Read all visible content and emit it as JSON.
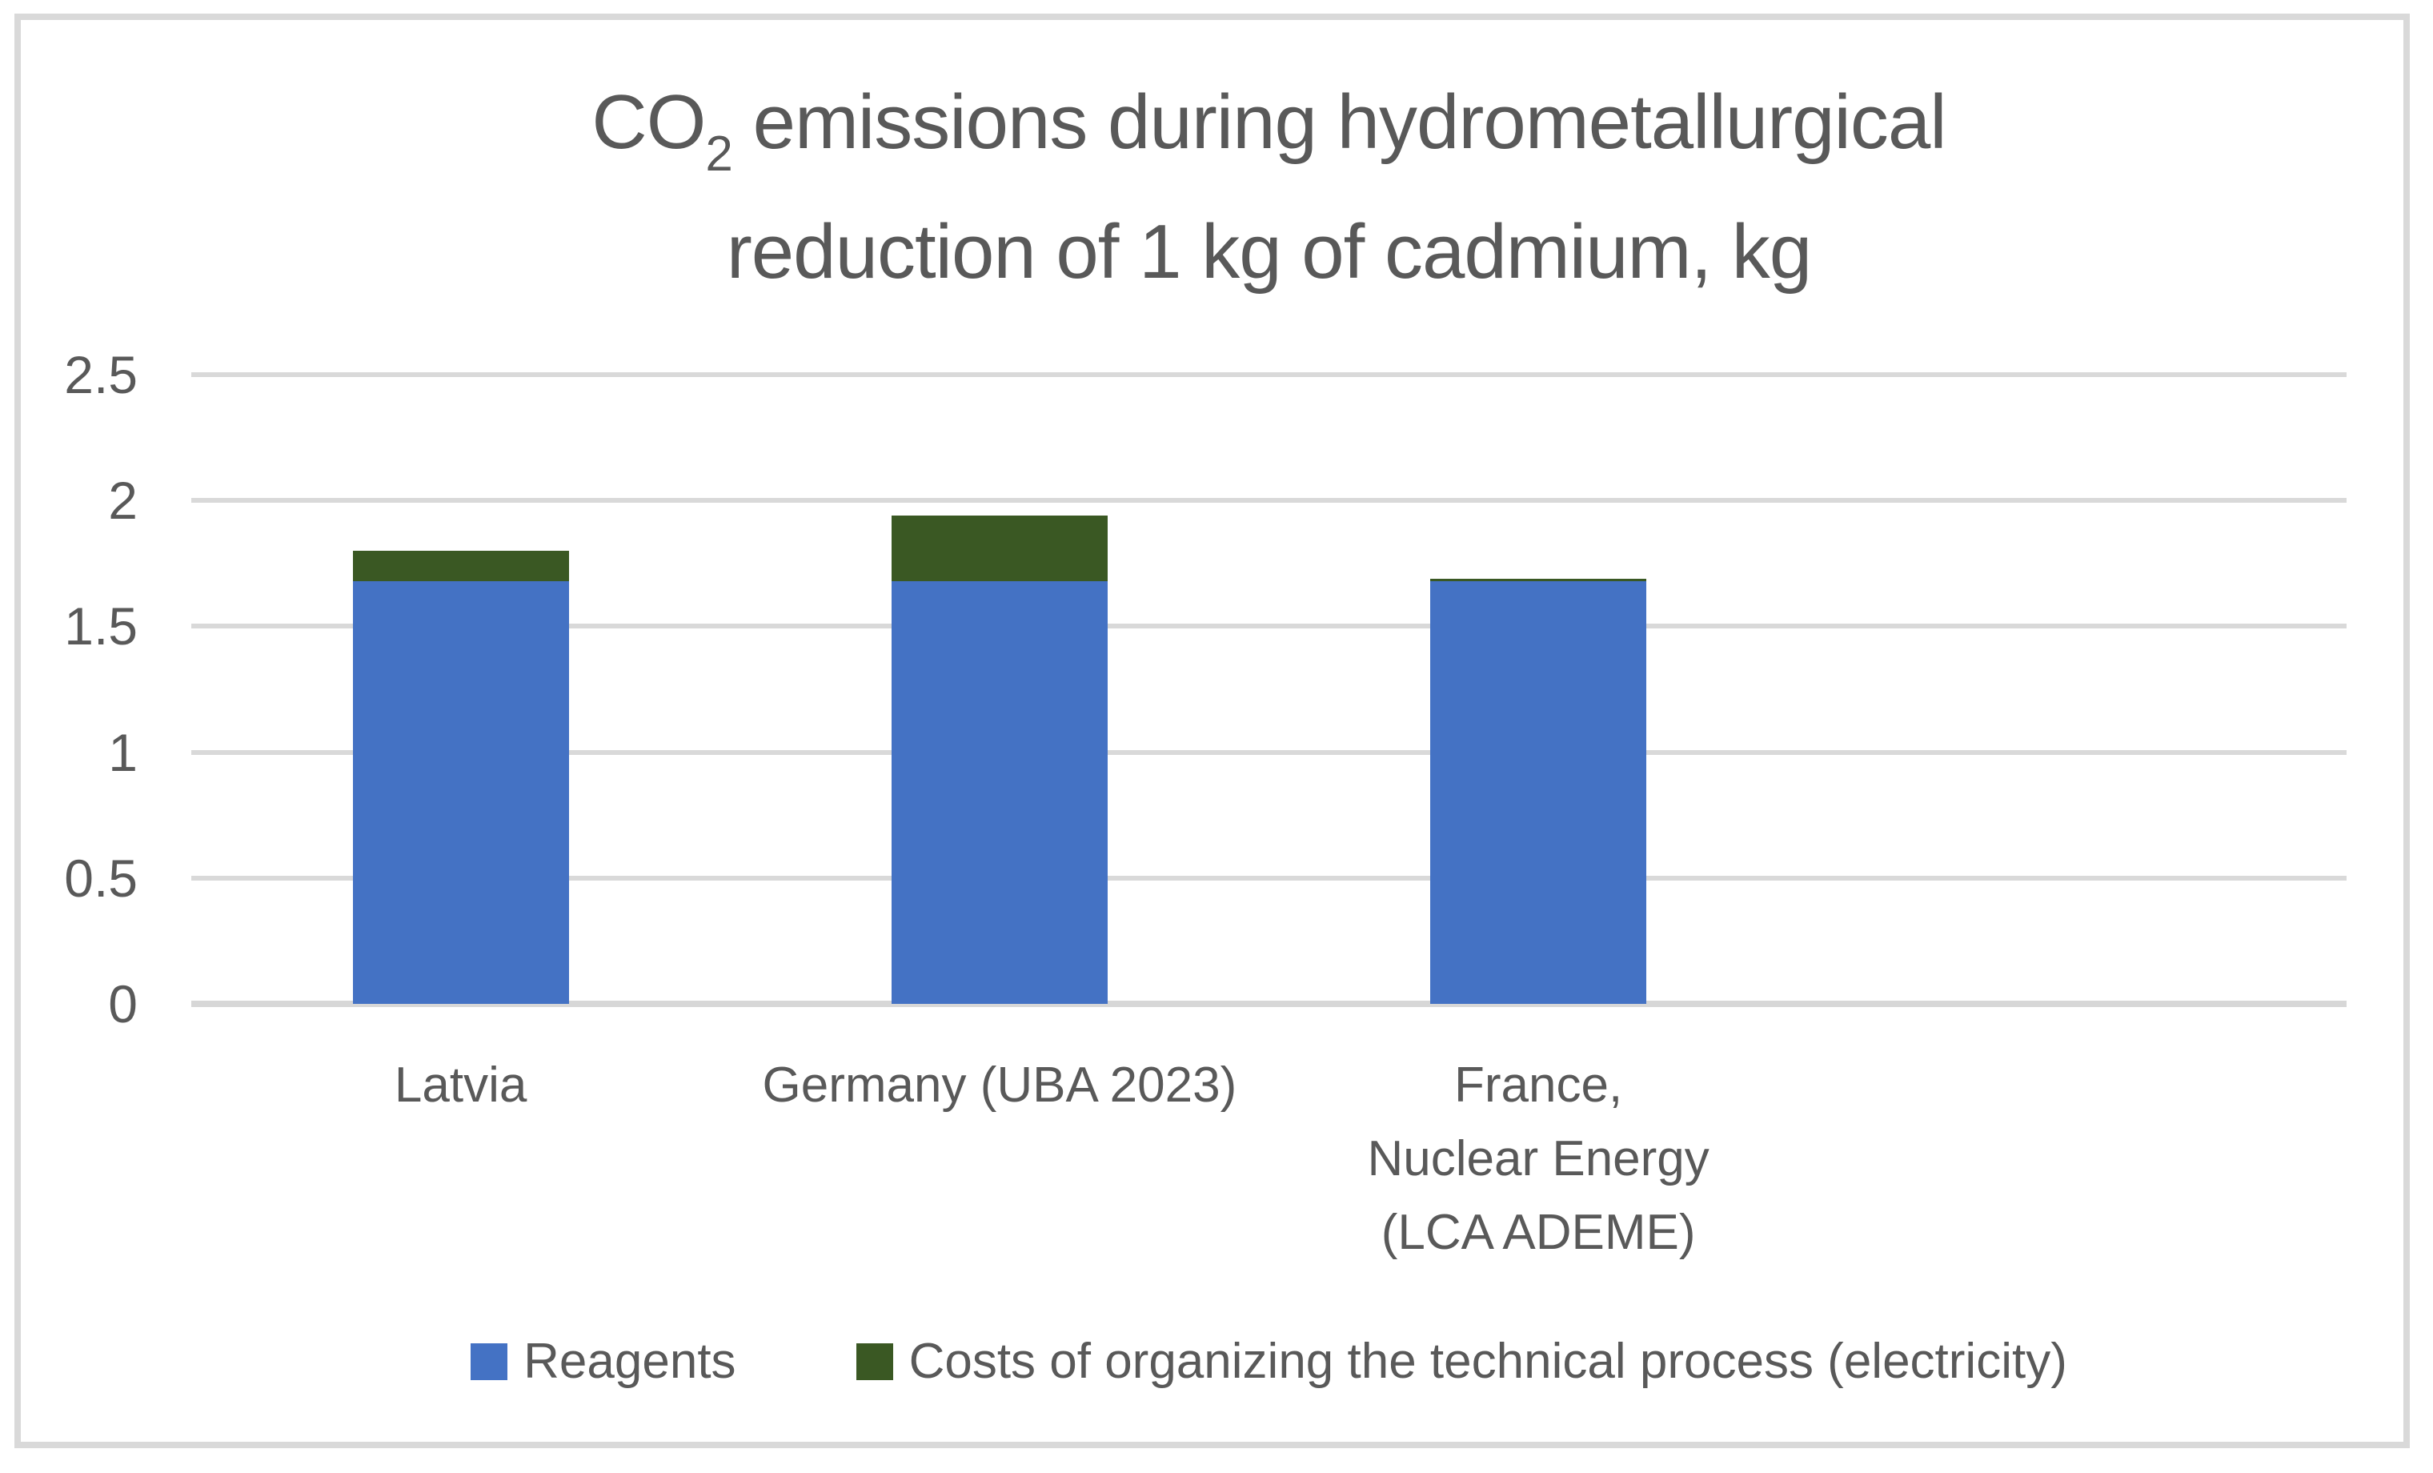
{
  "title": {
    "line1_prefix": "CO",
    "line1_subscript": "2",
    "line1_rest": " emissions during hydrometallurgical",
    "line2": "reduction of 1 kg of cadmium, kg"
  },
  "chart_data": {
    "type": "bar",
    "stacked": true,
    "title": "CO2 emissions during hydrometallurgical reduction of 1 kg of cadmium, kg",
    "categories": [
      "Latvia",
      "Germany (UBA 2023)",
      "France, Nuclear Energy (LCA ADEME)"
    ],
    "category_label_lines": [
      [
        "Latvia"
      ],
      [
        "Germany (UBA 2023)"
      ],
      [
        "France,",
        "Nuclear Energy",
        "(LCA ADEME)"
      ]
    ],
    "series": [
      {
        "name": "Reagents",
        "color": "#4472C4",
        "values": [
          1.68,
          1.68,
          1.68
        ]
      },
      {
        "name": "Costs of organizing the technical process (electricity)",
        "color": "#3A5823",
        "values": [
          0.12,
          0.26,
          0.01
        ]
      }
    ],
    "totals": [
      1.8,
      1.94,
      1.69
    ],
    "ylim": [
      0,
      2.5
    ],
    "yticks": [
      0,
      0.5,
      1,
      1.5,
      2,
      2.5
    ],
    "ytick_labels": [
      "0",
      "0.5",
      "1",
      "1.5",
      "2",
      "2.5"
    ],
    "xlabel": "",
    "ylabel": "",
    "grid": true,
    "legend_position": "bottom",
    "gridline_color": "#D9D9D9",
    "text_color": "#595959"
  }
}
